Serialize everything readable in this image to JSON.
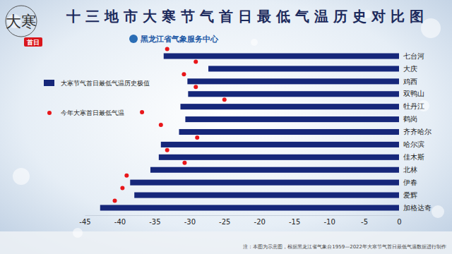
{
  "chart_data": {
    "type": "bar",
    "orientation": "horizontal",
    "title": "十三地市大寒节气首日最低气温历史对比图",
    "subtitle": "黑龙江省气象服务中心",
    "annotations": [
      "大寒",
      "首日",
      "注：本图为示意图，根据黑龙江省气象台1959—2022年大寒节气首日最低气温数据进行制作"
    ],
    "categories": [
      "七台河",
      "大庆",
      "鸡西",
      "双鸭山",
      "牡丹江",
      "鹤岗",
      "齐齐哈尔",
      "哈尔滨",
      "佳木斯",
      "北林",
      "伊春",
      "爱辉",
      "加格达奇"
    ],
    "series": [
      {
        "name": "大寒节气首日最低气温历史极值",
        "type": "bar",
        "color": "#16277a",
        "values": [
          -33.7,
          -27.3,
          -30.3,
          -30.2,
          -31.3,
          -30.6,
          -31.5,
          -34.1,
          -34.4,
          -35.6,
          -38.5,
          -37.9,
          -42.8
        ]
      },
      {
        "name": "今年大寒首日最低气温",
        "type": "scatter",
        "marker": "circle",
        "color": "#e8161a",
        "values": [
          -33.2,
          -29.1,
          -30.8,
          -29.1,
          -25.0,
          -36.8,
          -34.1,
          -28.9,
          -33.2,
          -30.7,
          -39.0,
          -39.6,
          -40.7
        ]
      }
    ],
    "xlim": [
      -45,
      0
    ],
    "xticks": [
      -45,
      -40,
      -35,
      -30,
      -25,
      -20,
      -15,
      -10,
      -5,
      0
    ],
    "grid": false,
    "legend": "left"
  }
}
